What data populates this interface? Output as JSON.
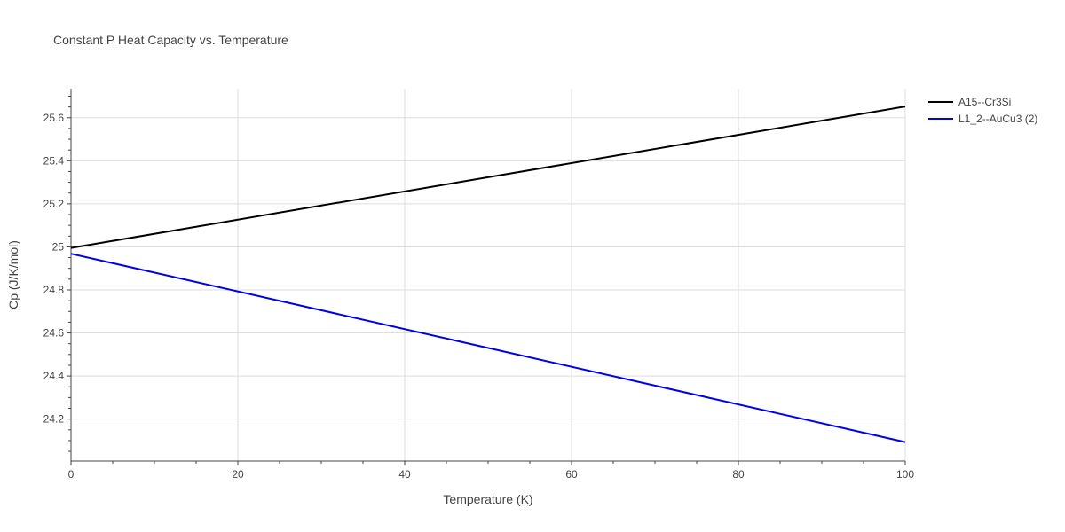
{
  "chart_data": {
    "type": "line",
    "title": "Constant P Heat Capacity vs. Temperature",
    "xlabel": "Temperature (K)",
    "ylabel": "Cp (J/K/mol)",
    "xlim": [
      0,
      100
    ],
    "ylim": [
      24.005,
      25.735
    ],
    "x_ticks": [
      0,
      20,
      40,
      60,
      80,
      100
    ],
    "x_tick_labels": [
      "0",
      "20",
      "40",
      "60",
      "80",
      "100"
    ],
    "y_ticks": [
      24.2,
      24.4,
      24.6,
      24.8,
      25.0,
      25.2,
      25.4,
      25.6
    ],
    "y_tick_labels": [
      "24.2",
      "24.4",
      "24.6",
      "24.8",
      "25",
      "25.2",
      "25.4",
      "25.6"
    ],
    "grid": true,
    "legend_position": "top-right",
    "series": [
      {
        "name": "A15--Cr3Si",
        "color": "#000000",
        "x": [
          0,
          100
        ],
        "y": [
          24.995,
          25.652
        ]
      },
      {
        "name": "L1_2--AuCu3 (2)",
        "color": "#0000ee",
        "x": [
          0,
          100
        ],
        "y": [
          24.968,
          24.093
        ]
      }
    ]
  }
}
